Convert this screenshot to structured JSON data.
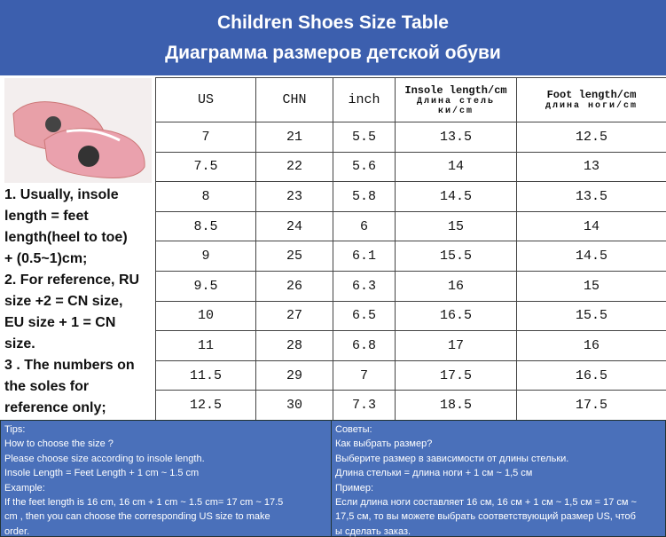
{
  "header": {
    "title": "Children Shoes Size Table",
    "subtitle": "Диаграмма размеров детской обуви"
  },
  "notes": [
    "1. Usually, insole",
    "length = feet",
    "length(heel to toe)",
    "+ (0.5~1)cm;",
    "2. For reference, RU",
    "size +2 = CN size,",
    "EU size + 1 = CN",
    "size.",
    "3 . The numbers on",
    "the soles for",
    "reference only;"
  ],
  "table": {
    "columns": [
      [
        "US"
      ],
      [
        "CHN"
      ],
      [
        "inch"
      ],
      [
        "Insole length/cm",
        "Длина стель ки/cm"
      ],
      [
        "Foot length/cm",
        "длина ноги/cm"
      ]
    ],
    "rows": [
      [
        "7",
        "21",
        "5.5",
        "13.5",
        "12.5"
      ],
      [
        "7.5",
        "22",
        "5.6",
        "14",
        "13"
      ],
      [
        "8",
        "23",
        "5.8",
        "14.5",
        "13.5"
      ],
      [
        "8.5",
        "24",
        "6",
        "15",
        "14"
      ],
      [
        "9",
        "25",
        "6.1",
        "15.5",
        "14.5"
      ],
      [
        "9.5",
        "26",
        "6.3",
        "16",
        "15"
      ],
      [
        "10",
        "27",
        "6.5",
        "16.5",
        "15.5"
      ],
      [
        "11",
        "28",
        "6.8",
        "17",
        "16"
      ],
      [
        "11.5",
        "29",
        "7",
        "17.5",
        "16.5"
      ],
      [
        "12.5",
        "30",
        "7.3",
        "18.5",
        "17.5"
      ]
    ]
  },
  "tips_en": [
    "Tips:",
    "How to choose the size ?",
    "Please choose size according to insole length.",
    "Insole Length = Feet Length + 1 cm ~ 1.5 cm",
    "Example:",
    "If the feet length is 16 cm, 16 cm + 1 cm ~ 1.5 cm= 17 cm ~ 17.5",
    "cm , then you can choose the corresponding US size to make",
    "order."
  ],
  "tips_ru": [
    "Советы:",
    "Как выбрать размер?",
    "Выберите размер в зависимости от длины стельки.",
    "Длина стельки = длина ноги + 1 см ~ 1,5 см",
    "Пример:",
    "Если длина ноги составляет 16 см, 16 см + 1 см ~ 1,5 см = 17 см ~",
    "17,5 см, то вы можете выбрать соответствующий размер US, чтоб",
    "ы сделать заказ."
  ]
}
